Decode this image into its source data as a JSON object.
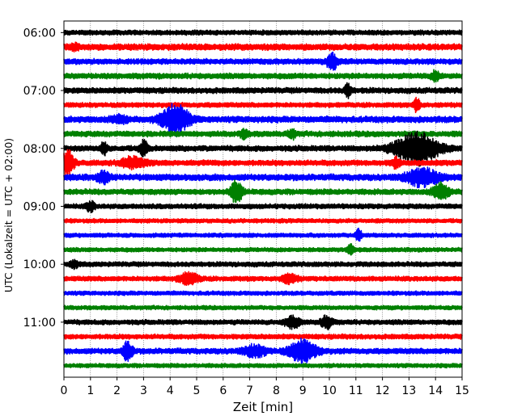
{
  "chart_data": {
    "type": "line",
    "title": "",
    "xlabel": "Zeit  [min]",
    "ylabel": "UTC (Lokalzeit = UTC + 02:00)",
    "xlim": [
      0,
      15
    ],
    "x_ticks": [
      "0",
      "1",
      "2",
      "3",
      "4",
      "5",
      "6",
      "7",
      "8",
      "9",
      "10",
      "11",
      "12",
      "13",
      "14",
      "15"
    ],
    "y_ticks": [
      {
        "label": "06:00",
        "trace": 0
      },
      {
        "label": "07:00",
        "trace": 4
      },
      {
        "label": "08:00",
        "trace": 8
      },
      {
        "label": "09:00",
        "trace": 12
      },
      {
        "label": "10:00",
        "trace": 16
      },
      {
        "label": "11:00",
        "trace": 20
      }
    ],
    "grid": "vertical dotted",
    "trace_colors": [
      "#000000",
      "#ff0000",
      "#0000ff",
      "#008000"
    ],
    "trace_count": 24,
    "trace_base_amplitude": [
      0.35,
      0.45,
      0.4,
      0.4,
      0.4,
      0.35,
      0.45,
      0.4,
      0.4,
      0.4,
      0.45,
      0.4,
      0.35,
      0.3,
      0.3,
      0.3,
      0.35,
      0.35,
      0.3,
      0.3,
      0.35,
      0.35,
      0.4,
      0.3
    ],
    "events": [
      {
        "trace": 1,
        "t": 0.4,
        "width": 0.12,
        "amplitude": 0.3
      },
      {
        "trace": 2,
        "t": 10.1,
        "width": 0.12,
        "amplitude": 1.4
      },
      {
        "trace": 3,
        "t": 14.0,
        "width": 0.1,
        "amplitude": 0.7
      },
      {
        "trace": 4,
        "t": 10.7,
        "width": 0.08,
        "amplitude": 1.0
      },
      {
        "trace": 5,
        "t": 13.3,
        "width": 0.08,
        "amplitude": 1.0
      },
      {
        "trace": 6,
        "t": 4.2,
        "width": 0.35,
        "amplitude": 2.2
      },
      {
        "trace": 6,
        "t": 2.1,
        "width": 0.2,
        "amplitude": 0.5
      },
      {
        "trace": 7,
        "t": 6.8,
        "width": 0.1,
        "amplitude": 0.6
      },
      {
        "trace": 7,
        "t": 8.6,
        "width": 0.1,
        "amplitude": 0.6
      },
      {
        "trace": 8,
        "t": 1.5,
        "width": 0.08,
        "amplitude": 0.9
      },
      {
        "trace": 8,
        "t": 3.0,
        "width": 0.1,
        "amplitude": 1.1
      },
      {
        "trace": 8,
        "t": 13.3,
        "width": 0.55,
        "amplitude": 2.4
      },
      {
        "trace": 9,
        "t": 0.15,
        "width": 0.15,
        "amplitude": 2.0
      },
      {
        "trace": 9,
        "t": 2.6,
        "width": 0.3,
        "amplitude": 0.8
      },
      {
        "trace": 9,
        "t": 12.5,
        "width": 0.1,
        "amplitude": 0.7
      },
      {
        "trace": 10,
        "t": 13.5,
        "width": 0.4,
        "amplitude": 1.3
      },
      {
        "trace": 10,
        "t": 1.5,
        "width": 0.15,
        "amplitude": 0.8
      },
      {
        "trace": 11,
        "t": 6.5,
        "width": 0.15,
        "amplitude": 1.6
      },
      {
        "trace": 11,
        "t": 14.2,
        "width": 0.2,
        "amplitude": 1.2
      },
      {
        "trace": 12,
        "t": 1.0,
        "width": 0.1,
        "amplitude": 0.8
      },
      {
        "trace": 14,
        "t": 11.1,
        "width": 0.08,
        "amplitude": 0.9
      },
      {
        "trace": 15,
        "t": 10.8,
        "width": 0.08,
        "amplitude": 0.8
      },
      {
        "trace": 16,
        "t": 0.4,
        "width": 0.1,
        "amplitude": 0.5
      },
      {
        "trace": 17,
        "t": 4.7,
        "width": 0.25,
        "amplitude": 0.8
      },
      {
        "trace": 17,
        "t": 8.5,
        "width": 0.2,
        "amplitude": 0.6
      },
      {
        "trace": 20,
        "t": 8.6,
        "width": 0.2,
        "amplitude": 0.8
      },
      {
        "trace": 20,
        "t": 9.9,
        "width": 0.15,
        "amplitude": 0.9
      },
      {
        "trace": 22,
        "t": 2.4,
        "width": 0.12,
        "amplitude": 1.5
      },
      {
        "trace": 22,
        "t": 7.2,
        "width": 0.3,
        "amplitude": 0.8
      },
      {
        "trace": 22,
        "t": 9.0,
        "width": 0.35,
        "amplitude": 1.6
      }
    ]
  }
}
